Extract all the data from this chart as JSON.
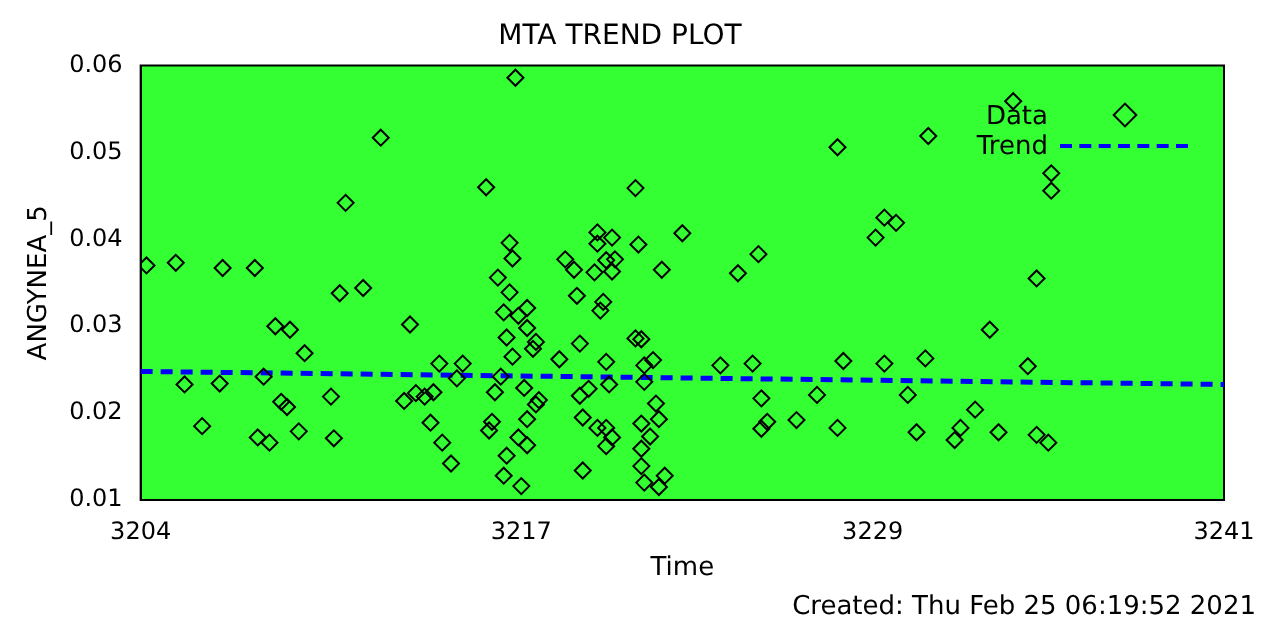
{
  "chart_data": {
    "type": "scatter",
    "title": "MTA TREND PLOT",
    "xlabel": "Time",
    "ylabel": "ANGYNEA_5",
    "xlim": [
      3204,
      3241
    ],
    "xticks": [
      3204,
      3217,
      3229,
      3241
    ],
    "ylim": [
      0.01,
      0.06
    ],
    "yticks": [
      0.01,
      0.02,
      0.03,
      0.04,
      0.05,
      0.06
    ],
    "grid": false,
    "legend": "top right",
    "annotations": [
      "Created: Thu Feb 25 06:19:52 2021"
    ],
    "series": [
      {
        "name": "Data",
        "type": "scatter",
        "color": "#000000",
        "marker": "diamond",
        "x": [
          3204.2,
          3205.2,
          3205.5,
          3206.1,
          3206.7,
          3206.8,
          3207.9,
          3208.0,
          3208.2,
          3208.4,
          3208.6,
          3208.8,
          3209.0,
          3209.1,
          3209.4,
          3209.6,
          3210.5,
          3210.6,
          3210.8,
          3211.0,
          3211.6,
          3212.2,
          3213.0,
          3213.2,
          3213.4,
          3213.7,
          3213.9,
          3214.0,
          3214.2,
          3214.3,
          3214.6,
          3214.8,
          3215.0,
          3215.8,
          3215.9,
          3216.0,
          3216.1,
          3216.2,
          3216.3,
          3216.4,
          3216.4,
          3216.5,
          3216.5,
          3216.6,
          3216.6,
          3216.7,
          3216.7,
          3216.8,
          3216.9,
          3216.9,
          3217.0,
          3217.1,
          3217.2,
          3217.2,
          3217.2,
          3217.2,
          3217.4,
          3217.5,
          3217.5,
          3217.6,
          3218.3,
          3218.5,
          3218.8,
          3218.9,
          3219.0,
          3219.1,
          3219.0,
          3219.1,
          3219.3,
          3219.5,
          3219.6,
          3219.6,
          3219.7,
          3219.8,
          3219.9,
          3220.1,
          3220.1,
          3219.9,
          3220.0,
          3219.9,
          3219.9,
          3220.1,
          3219.6,
          3220.2,
          3220.9,
          3221.0,
          3220.9,
          3221.1,
          3221.2,
          3221.2,
          3221.1,
          3221.1,
          3221.1,
          3221.2,
          3221.4,
          3221.5,
          3221.6,
          3221.7,
          3221.7,
          3221.8,
          3221.9,
          3222.5,
          3223.8,
          3224.4,
          3224.9,
          3225.1,
          3225.2,
          3225.2,
          3225.4,
          3226.4,
          3227.1,
          3227.8,
          3227.8,
          3228.0,
          3229.1,
          3229.4,
          3229.4,
          3229.8,
          3230.2,
          3230.5,
          3230.8,
          3230.9,
          3231.8,
          3232.0,
          3232.5,
          3233.0,
          3233.3,
          3233.8,
          3234.3,
          3234.6,
          3234.6,
          3235.0,
          3235.1,
          3235.1
        ],
        "values": [
          0.037,
          0.0373,
          0.0233,
          0.0185,
          0.0234,
          0.0367,
          0.0367,
          0.0172,
          0.0242,
          0.0166,
          0.03,
          0.0213,
          0.0207,
          0.0296,
          0.0179,
          0.0269,
          0.0219,
          0.0171,
          0.0338,
          0.0442,
          0.0344,
          0.0517,
          0.0214,
          0.0302,
          0.0223,
          0.0219,
          0.0189,
          0.0224,
          0.0257,
          0.0166,
          0.0142,
          0.024,
          0.0257,
          0.046,
          0.018,
          0.019,
          0.0224,
          0.0356,
          0.0242,
          0.0316,
          0.0128,
          0.0287,
          0.0151,
          0.0396,
          0.0339,
          0.0378,
          0.0265,
          0.0586,
          0.0312,
          0.0172,
          0.0116,
          0.0229,
          0.0193,
          0.0321,
          0.0298,
          0.0163,
          0.0274,
          0.021,
          0.0282,
          0.0215,
          0.0262,
          0.0377,
          0.0365,
          0.0335,
          0.028,
          0.0134,
          0.022,
          0.0195,
          0.0228,
          0.0362,
          0.0408,
          0.0395,
          0.0318,
          0.0328,
          0.0376,
          0.0402,
          0.0363,
          0.0259,
          0.0233,
          0.0162,
          0.0183,
          0.0172,
          0.0183,
          0.0377,
          0.0459,
          0.0394,
          0.0286,
          0.0285,
          0.0255,
          0.0236,
          0.0188,
          0.0159,
          0.0139,
          0.012,
          0.0173,
          0.0261,
          0.0211,
          0.0193,
          0.0115,
          0.0365,
          0.0128,
          0.0407,
          0.0255,
          0.0361,
          0.0257,
          0.0383,
          0.0217,
          0.0182,
          0.019,
          0.0192,
          0.0221,
          0.0183,
          0.0506,
          0.026,
          0.0402,
          0.0425,
          0.0257,
          0.0419,
          0.0221,
          0.0178,
          0.0263,
          0.0519,
          0.0169,
          0.0183,
          0.0204,
          0.0296,
          0.0178,
          0.0559,
          0.0254,
          0.0355,
          0.0175,
          0.0166,
          0.0476,
          0.0456
        ]
      },
      {
        "name": "Trend",
        "type": "line",
        "color": "#0000ff",
        "line_style": "dashed",
        "x": [
          3204,
          3241
        ],
        "values": [
          0.0248,
          0.0233
        ]
      }
    ]
  }
}
